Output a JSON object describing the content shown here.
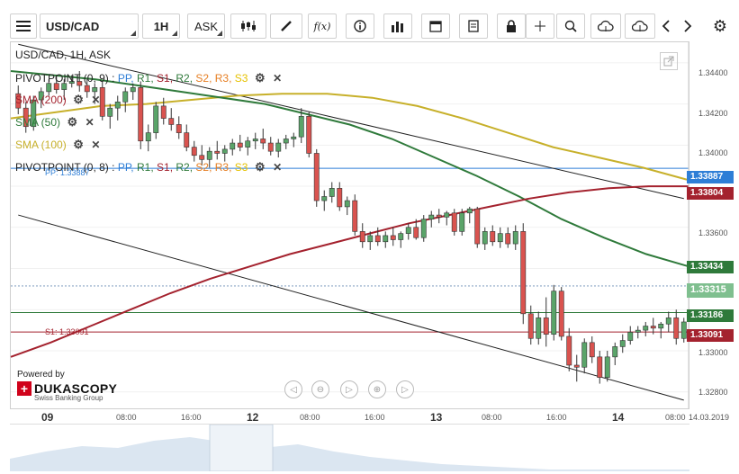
{
  "toolbar": {
    "symbol": "USD/CAD",
    "interval": "1H",
    "side": "ASK",
    "function_label": "f(x)"
  },
  "chart_header": "USD/CAD, 1H, ASK",
  "indicators": {
    "pivot1": {
      "name": "PIVOTPOINT (0, 9)",
      "sep": ":",
      "pp": "PP,",
      "r1": "R1,",
      "s1": "S1,",
      "r2": "R2,",
      "s2": "S2,",
      "r3": "R3,",
      "s3": "S3"
    },
    "sma200": {
      "name": "SMA (200)",
      "color": "#a4222e"
    },
    "sma50": {
      "name": "SMA (50)",
      "color": "#2f7a3b"
    },
    "sma100": {
      "name": "SMA (100)",
      "color": "#c7b02a"
    },
    "pivot2": {
      "name": "PIVOTPOINT (0, 8)",
      "sep": ":",
      "pp": "PP,",
      "r1": "R1,",
      "s1": "S1,",
      "r2": "R2,",
      "s2": "S2,",
      "r3": "R3,",
      "s3": "S3"
    }
  },
  "annotations": {
    "pp_line": "PP: 1.33887",
    "s1_line": "S1: 1.33091"
  },
  "price_labels": [
    {
      "text": "1.33887",
      "bg": "#2e7ed6"
    },
    {
      "text": "1.33804",
      "bg": "#a4222e"
    },
    {
      "text": "1.33434",
      "bg": "#2f7a3b"
    },
    {
      "text": "1.33315",
      "bg": "#7fbf8f"
    },
    {
      "text": "1.33186",
      "bg": "#2f7a3b"
    },
    {
      "text": "1.33091",
      "bg": "#a4222e"
    }
  ],
  "x_labels": [
    "09",
    "08:00",
    "16:00",
    "12",
    "08:00",
    "16:00",
    "13",
    "08:00",
    "16:00",
    "14",
    "08:00",
    "14.03.2019"
  ],
  "branding": {
    "powered": "Powered by",
    "name": "DUKASCOPY",
    "sub": "Swiss Banking Group"
  },
  "colors": {
    "up": "#5aa469",
    "down": "#d9534f",
    "pp_line": "#2e7ed6",
    "s1_line": "#a4222e",
    "trend": "#222222"
  },
  "chart_data": {
    "type": "candlestick",
    "symbol": "USD/CAD",
    "timeframe": "1H",
    "y_range": [
      1.3272,
      1.345
    ],
    "y_ticks": [
      1.344,
      1.342,
      1.34,
      1.3386,
      1.336,
      1.3343,
      1.3331,
      1.3319,
      1.3309,
      1.33,
      1.328
    ],
    "y_tick_labels": [
      "1.34400",
      "1.34200",
      "1.34000",
      "",
      "1.33600",
      "",
      "",
      "",
      "",
      "1.33000",
      "1.32800"
    ],
    "x_ticks": [
      "09",
      "08:00",
      "16:00",
      "12",
      "08:00",
      "16:00",
      "13",
      "08:00",
      "16:00",
      "14",
      "08:00"
    ],
    "candles": [
      [
        1.3425,
        1.3429,
        1.3415,
        1.3418
      ],
      [
        1.3418,
        1.3421,
        1.3406,
        1.3409
      ],
      [
        1.3409,
        1.3424,
        1.3407,
        1.3422
      ],
      [
        1.3422,
        1.3428,
        1.3418,
        1.3426
      ],
      [
        1.3426,
        1.3432,
        1.3424,
        1.343
      ],
      [
        1.343,
        1.3434,
        1.3425,
        1.3427
      ],
      [
        1.3427,
        1.3432,
        1.3422,
        1.343
      ],
      [
        1.343,
        1.3434,
        1.3428,
        1.3431
      ],
      [
        1.3431,
        1.3436,
        1.3426,
        1.3429
      ],
      [
        1.3429,
        1.3432,
        1.3423,
        1.3426
      ],
      [
        1.3426,
        1.343,
        1.342,
        1.3428
      ],
      [
        1.3428,
        1.3431,
        1.3412,
        1.3414
      ],
      [
        1.3414,
        1.342,
        1.3408,
        1.3418
      ],
      [
        1.3418,
        1.3424,
        1.3412,
        1.3421
      ],
      [
        1.3421,
        1.3428,
        1.3416,
        1.3426
      ],
      [
        1.3426,
        1.343,
        1.3422,
        1.3428
      ],
      [
        1.3428,
        1.3431,
        1.3398,
        1.3402
      ],
      [
        1.3402,
        1.341,
        1.3397,
        1.3406
      ],
      [
        1.3406,
        1.3421,
        1.3403,
        1.3419
      ],
      [
        1.3419,
        1.3423,
        1.341,
        1.3413
      ],
      [
        1.3413,
        1.3418,
        1.3407,
        1.341
      ],
      [
        1.341,
        1.3414,
        1.3403,
        1.3406
      ],
      [
        1.3406,
        1.341,
        1.3397,
        1.3399
      ],
      [
        1.3399,
        1.3402,
        1.3392,
        1.3395
      ],
      [
        1.3395,
        1.34,
        1.339,
        1.3393
      ],
      [
        1.3393,
        1.3399,
        1.3389,
        1.3397
      ],
      [
        1.3397,
        1.3402,
        1.3393,
        1.3396
      ],
      [
        1.3396,
        1.34,
        1.3392,
        1.3398
      ],
      [
        1.3398,
        1.3403,
        1.3395,
        1.3401
      ],
      [
        1.3401,
        1.3405,
        1.3397,
        1.3399
      ],
      [
        1.3399,
        1.3404,
        1.3395,
        1.3402
      ],
      [
        1.3402,
        1.3406,
        1.3398,
        1.3403
      ],
      [
        1.3403,
        1.3408,
        1.3398,
        1.3401
      ],
      [
        1.3401,
        1.3404,
        1.3395,
        1.3397
      ],
      [
        1.3397,
        1.3403,
        1.3394,
        1.3401
      ],
      [
        1.3401,
        1.3405,
        1.3398,
        1.3403
      ],
      [
        1.3403,
        1.3406,
        1.3399,
        1.3404
      ],
      [
        1.3404,
        1.3418,
        1.3401,
        1.3414
      ],
      [
        1.3414,
        1.3416,
        1.3394,
        1.3396
      ],
      [
        1.3396,
        1.3398,
        1.337,
        1.3373
      ],
      [
        1.3373,
        1.3378,
        1.3368,
        1.3375
      ],
      [
        1.3375,
        1.3382,
        1.3372,
        1.3379
      ],
      [
        1.3379,
        1.3382,
        1.3368,
        1.337
      ],
      [
        1.337,
        1.3375,
        1.3366,
        1.3373
      ],
      [
        1.3373,
        1.3376,
        1.3356,
        1.3358
      ],
      [
        1.3358,
        1.3362,
        1.335,
        1.3353
      ],
      [
        1.3353,
        1.3358,
        1.3349,
        1.3356
      ],
      [
        1.3356,
        1.336,
        1.3351,
        1.3353
      ],
      [
        1.3353,
        1.3358,
        1.335,
        1.3356
      ],
      [
        1.3356,
        1.336,
        1.3351,
        1.3354
      ],
      [
        1.3354,
        1.3358,
        1.335,
        1.3357
      ],
      [
        1.3357,
        1.3362,
        1.3354,
        1.336
      ],
      [
        1.336,
        1.3364,
        1.3354,
        1.3355
      ],
      [
        1.3355,
        1.3366,
        1.3353,
        1.3364
      ],
      [
        1.3364,
        1.3368,
        1.336,
        1.3366
      ],
      [
        1.3366,
        1.3369,
        1.3362,
        1.3365
      ],
      [
        1.3365,
        1.3368,
        1.3361,
        1.3367
      ],
      [
        1.3367,
        1.3369,
        1.3356,
        1.3358
      ],
      [
        1.3358,
        1.3369,
        1.3356,
        1.3367
      ],
      [
        1.3367,
        1.337,
        1.3362,
        1.3369
      ],
      [
        1.3369,
        1.337,
        1.335,
        1.3352
      ],
      [
        1.3352,
        1.336,
        1.3349,
        1.3358
      ],
      [
        1.3358,
        1.3361,
        1.3351,
        1.3353
      ],
      [
        1.3353,
        1.336,
        1.335,
        1.3357
      ],
      [
        1.3357,
        1.336,
        1.335,
        1.3352
      ],
      [
        1.3352,
        1.3361,
        1.3349,
        1.3358
      ],
      [
        1.3358,
        1.3362,
        1.3313,
        1.3318
      ],
      [
        1.3318,
        1.3322,
        1.3303,
        1.3306
      ],
      [
        1.3306,
        1.3319,
        1.3303,
        1.3316
      ],
      [
        1.3316,
        1.3326,
        1.3302,
        1.3308
      ],
      [
        1.3308,
        1.3332,
        1.3305,
        1.3329
      ],
      [
        1.3329,
        1.3331,
        1.3305,
        1.3307
      ],
      [
        1.3307,
        1.3311,
        1.329,
        1.3293
      ],
      [
        1.3293,
        1.3298,
        1.3285,
        1.3292
      ],
      [
        1.3292,
        1.3306,
        1.3289,
        1.3304
      ],
      [
        1.3304,
        1.3307,
        1.3294,
        1.3297
      ],
      [
        1.3297,
        1.33,
        1.3284,
        1.3287
      ],
      [
        1.3287,
        1.33,
        1.3285,
        1.3297
      ],
      [
        1.3297,
        1.3304,
        1.3293,
        1.3302
      ],
      [
        1.3302,
        1.3308,
        1.3299,
        1.3305
      ],
      [
        1.3305,
        1.3312,
        1.3303,
        1.3309
      ],
      [
        1.3309,
        1.3312,
        1.3306,
        1.331
      ],
      [
        1.331,
        1.3314,
        1.3307,
        1.3312
      ],
      [
        1.3312,
        1.3316,
        1.3308,
        1.3311
      ],
      [
        1.3311,
        1.3314,
        1.3306,
        1.3313
      ],
      [
        1.3313,
        1.3319,
        1.3309,
        1.3316
      ],
      [
        1.3316,
        1.332,
        1.3303,
        1.3306
      ],
      [
        1.3306,
        1.3316,
        1.3304,
        1.3314
      ]
    ],
    "sma200": [
      1.3297,
      1.3304,
      1.3312,
      1.332,
      1.3328,
      1.3335,
      1.3341,
      1.3347,
      1.3352,
      1.3357,
      1.3362,
      1.3366,
      1.337,
      1.3374,
      1.3377,
      1.3379,
      1.338,
      1.338
    ],
    "sma50": [
      1.3436,
      1.3434,
      1.3432,
      1.3429,
      1.3426,
      1.3423,
      1.342,
      1.3415,
      1.341,
      1.3403,
      1.3394,
      1.3385,
      1.3375,
      1.3364,
      1.3355,
      1.3347,
      1.3341
    ],
    "sma100": [
      1.3413,
      1.3416,
      1.3419,
      1.342,
      1.3422,
      1.3424,
      1.3425,
      1.3425,
      1.3423,
      1.3419,
      1.3413,
      1.3406,
      1.3399,
      1.3394,
      1.3389,
      1.3383
    ],
    "lines": {
      "pp": 1.33887,
      "s1": 1.33091,
      "r_level": 1.33186,
      "current": 1.33315
    },
    "trend_upper": [
      [
        0,
        1.3449
      ],
      [
        87,
        1.3374
      ]
    ],
    "trend_lower": [
      [
        0,
        1.3366
      ],
      [
        87,
        1.3276
      ]
    ]
  }
}
